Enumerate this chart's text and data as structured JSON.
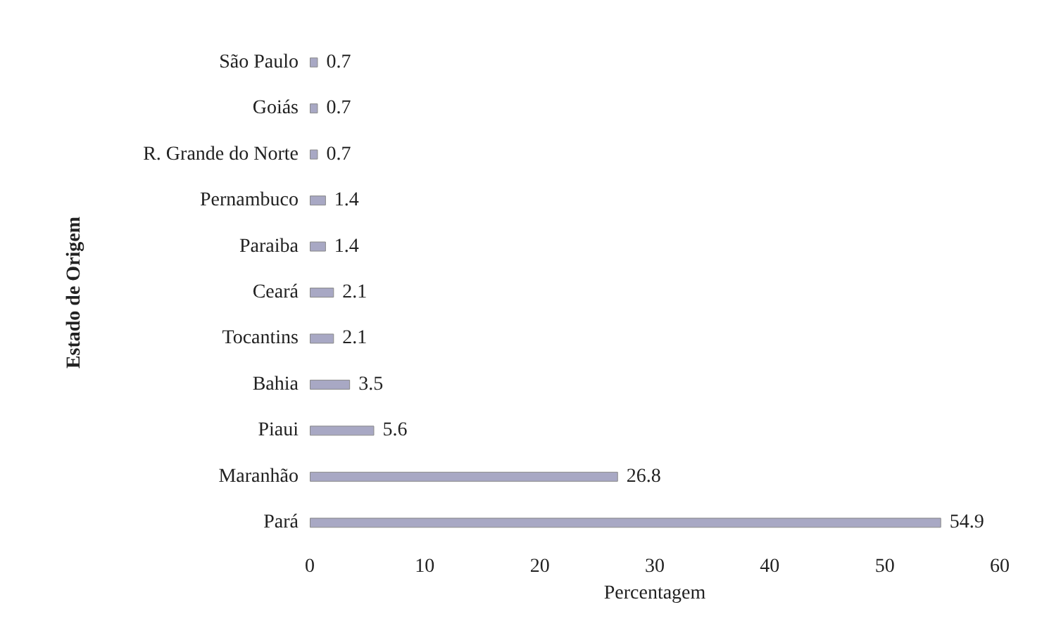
{
  "chart_data": {
    "type": "bar",
    "orientation": "horizontal",
    "xlabel": "Percentagem",
    "ylabel": "Estado de Origem",
    "categories": [
      "São Paulo",
      "Goiás",
      "R. Grande do Norte",
      "Pernambuco",
      "Paraiba",
      "Ceará",
      "Tocantins",
      "Bahia",
      "Piaui",
      "Maranhão",
      "Pará"
    ],
    "values": [
      0.7,
      0.7,
      0.7,
      1.4,
      1.4,
      2.1,
      2.1,
      3.5,
      5.6,
      26.8,
      54.9
    ],
    "color": "#a8a8c4",
    "data_labels": true,
    "xlim": [
      0,
      60
    ],
    "xticks": [
      0,
      10,
      20,
      30,
      40,
      50,
      60
    ],
    "grid": false
  }
}
